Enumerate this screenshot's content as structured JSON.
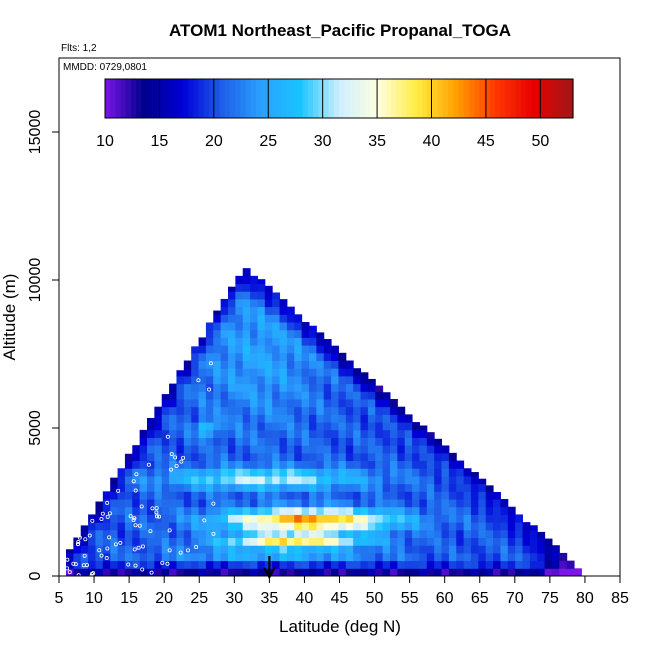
{
  "chart_data": {
    "type": "heatmap",
    "title": "ATOM1 Northeast_Pacific Propanal_TOGA",
    "flights_note": "Flts: 1,2",
    "dates_note": "MMDD: 0729,0801",
    "xlabel": "Latitude (deg N)",
    "ylabel": "Altitude (m)",
    "xlim": [
      5,
      85
    ],
    "ylim": [
      0,
      17500
    ],
    "x_ticks": [
      5,
      10,
      15,
      20,
      25,
      30,
      35,
      40,
      45,
      50,
      55,
      60,
      65,
      70,
      75,
      80,
      85
    ],
    "y_ticks": [
      0,
      5000,
      10000,
      15000
    ],
    "colorbar": {
      "ticks": [
        10,
        15,
        20,
        25,
        30,
        35,
        40,
        45,
        50
      ],
      "range": [
        10,
        53
      ],
      "placement": "top",
      "colors": [
        "#7b16e8",
        "#00008c",
        "#0000d8",
        "#1e5ee8",
        "#2aa0ff",
        "#18c4ff",
        "#cfeeff",
        "#ffffe0",
        "#ffec40",
        "#ffa000",
        "#ff3800",
        "#e80000",
        "#a01818"
      ]
    },
    "marker": {
      "x": 35,
      "label": "arrow"
    },
    "grid": false,
    "legend": "none"
  }
}
